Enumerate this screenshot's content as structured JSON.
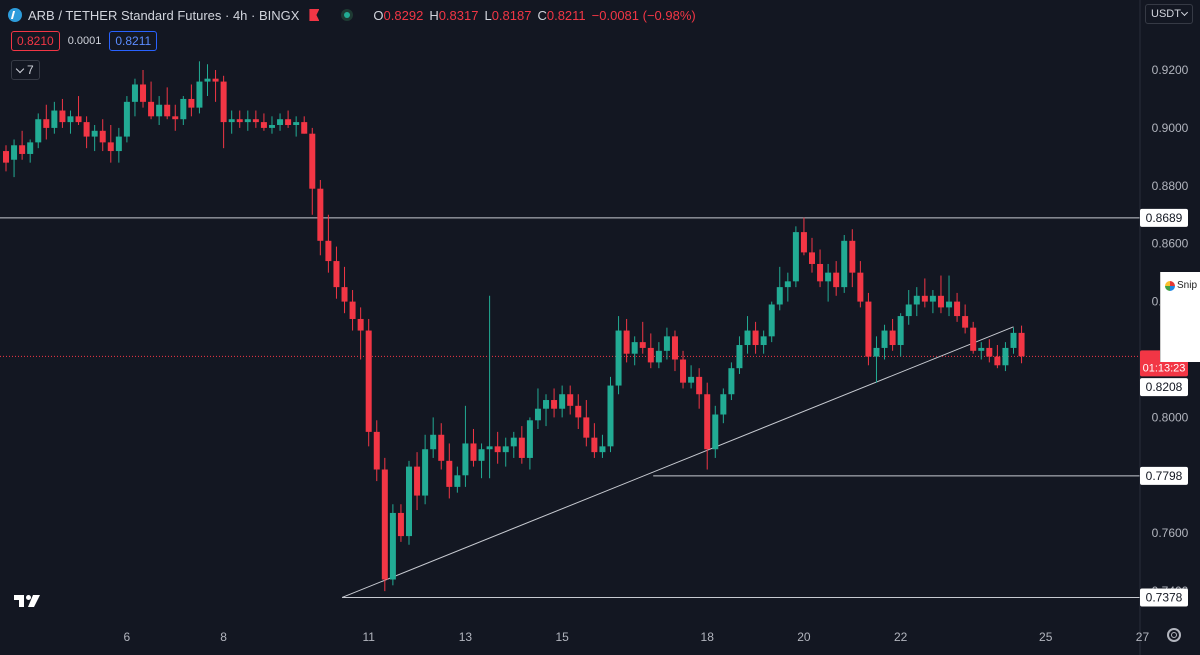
{
  "header": {
    "symbol_title": "ARB / TETHER Standard Futures · 4h · BINGX",
    "ohlc": [
      {
        "key": "O",
        "value": "0.8292"
      },
      {
        "key": "H",
        "value": "0.8317"
      },
      {
        "key": "L",
        "value": "0.8187"
      },
      {
        "key": "C",
        "value": "0.8211"
      }
    ],
    "change": "−0.0081 (−0.98%)",
    "sell_price": "0.8210",
    "spread": "0.0001",
    "buy_price": "0.8211",
    "indicators_count": "7",
    "currency": "USDT"
  },
  "snip_panel": {
    "label": "Snip"
  },
  "colors": {
    "background": "#131722",
    "up": "#22ab94",
    "down": "#f23645",
    "text": "#d1d4dc",
    "line": "#c7cad1"
  },
  "chart_data": {
    "type": "candlestick",
    "y_axis_ticks": [
      "0.9200",
      "0.9000",
      "0.8800",
      "0.8600",
      "0.8400",
      "0.8200",
      "0.8000",
      "0.7800",
      "0.7600",
      "0.7400"
    ],
    "x_axis_ticks": [
      "6",
      "8",
      "11",
      "13",
      "15",
      "18",
      "20",
      "22",
      "25",
      "27"
    ],
    "ylim": [
      0.726,
      0.926
    ],
    "x_ticks_positions": [
      {
        "label": "6",
        "bar": 15
      },
      {
        "label": "8",
        "bar": 27
      },
      {
        "label": "11",
        "bar": 45
      },
      {
        "label": "13",
        "bar": 57
      },
      {
        "label": "15",
        "bar": 69
      },
      {
        "label": "18",
        "bar": 87
      },
      {
        "label": "20",
        "bar": 99
      },
      {
        "label": "22",
        "bar": 111
      },
      {
        "label": "25",
        "bar": 129
      },
      {
        "label": "27",
        "bar": 141
      }
    ],
    "current_price": {
      "value": 0.8211,
      "countdown": "01:13:23"
    },
    "horizontal_levels": [
      {
        "value": 0.8689,
        "label": "0.8689"
      },
      {
        "value": 0.7798,
        "label": "0.7798"
      },
      {
        "value": 0.7378,
        "label": "0.7378"
      }
    ],
    "axis_price_labels": [
      {
        "value": 0.8208,
        "label": "0.8208"
      }
    ],
    "trendline": {
      "from": {
        "bar": 41.7,
        "price": 0.7378
      },
      "to": {
        "bar": 125.0,
        "price": 0.8313
      }
    },
    "candles": [
      [
        0.892,
        0.894,
        0.885,
        0.888
      ],
      [
        0.889,
        0.896,
        0.883,
        0.894
      ],
      [
        0.894,
        0.899,
        0.889,
        0.891
      ],
      [
        0.891,
        0.896,
        0.888,
        0.895
      ],
      [
        0.895,
        0.905,
        0.893,
        0.903
      ],
      [
        0.903,
        0.908,
        0.896,
        0.9
      ],
      [
        0.9,
        0.909,
        0.898,
        0.906
      ],
      [
        0.906,
        0.91,
        0.9,
        0.902
      ],
      [
        0.902,
        0.906,
        0.898,
        0.904
      ],
      [
        0.904,
        0.911,
        0.901,
        0.902
      ],
      [
        0.902,
        0.904,
        0.893,
        0.897
      ],
      [
        0.897,
        0.901,
        0.892,
        0.899
      ],
      [
        0.899,
        0.903,
        0.892,
        0.895
      ],
      [
        0.895,
        0.901,
        0.888,
        0.892
      ],
      [
        0.892,
        0.9,
        0.888,
        0.897
      ],
      [
        0.897,
        0.911,
        0.895,
        0.909
      ],
      [
        0.909,
        0.917,
        0.904,
        0.915
      ],
      [
        0.915,
        0.92,
        0.907,
        0.909
      ],
      [
        0.909,
        0.916,
        0.903,
        0.904
      ],
      [
        0.904,
        0.911,
        0.901,
        0.908
      ],
      [
        0.908,
        0.914,
        0.903,
        0.904
      ],
      [
        0.904,
        0.908,
        0.899,
        0.903
      ],
      [
        0.903,
        0.911,
        0.901,
        0.91
      ],
      [
        0.91,
        0.915,
        0.904,
        0.907
      ],
      [
        0.907,
        0.923,
        0.905,
        0.916
      ],
      [
        0.916,
        0.922,
        0.911,
        0.917
      ],
      [
        0.917,
        0.92,
        0.909,
        0.916
      ],
      [
        0.916,
        0.918,
        0.893,
        0.902
      ],
      [
        0.902,
        0.906,
        0.898,
        0.903
      ],
      [
        0.903,
        0.906,
        0.9,
        0.902
      ],
      [
        0.902,
        0.906,
        0.899,
        0.903
      ],
      [
        0.903,
        0.906,
        0.9,
        0.902
      ],
      [
        0.902,
        0.905,
        0.899,
        0.9
      ],
      [
        0.9,
        0.904,
        0.898,
        0.901
      ],
      [
        0.901,
        0.905,
        0.899,
        0.903
      ],
      [
        0.903,
        0.906,
        0.9,
        0.901
      ],
      [
        0.901,
        0.904,
        0.897,
        0.902
      ],
      [
        0.902,
        0.904,
        0.898,
        0.898
      ],
      [
        0.898,
        0.9,
        0.87,
        0.879
      ],
      [
        0.879,
        0.882,
        0.856,
        0.861
      ],
      [
        0.861,
        0.87,
        0.85,
        0.854
      ],
      [
        0.854,
        0.859,
        0.841,
        0.845
      ],
      [
        0.845,
        0.852,
        0.836,
        0.84
      ],
      [
        0.84,
        0.844,
        0.83,
        0.834
      ],
      [
        0.834,
        0.838,
        0.82,
        0.83
      ],
      [
        0.83,
        0.834,
        0.79,
        0.795
      ],
      [
        0.795,
        0.799,
        0.778,
        0.782
      ],
      [
        0.782,
        0.786,
        0.74,
        0.744
      ],
      [
        0.744,
        0.77,
        0.742,
        0.767
      ],
      [
        0.767,
        0.77,
        0.757,
        0.759
      ],
      [
        0.759,
        0.785,
        0.756,
        0.783
      ],
      [
        0.783,
        0.788,
        0.768,
        0.773
      ],
      [
        0.773,
        0.794,
        0.77,
        0.789
      ],
      [
        0.789,
        0.8,
        0.786,
        0.794
      ],
      [
        0.794,
        0.798,
        0.782,
        0.785
      ],
      [
        0.785,
        0.791,
        0.772,
        0.776
      ],
      [
        0.776,
        0.783,
        0.774,
        0.78
      ],
      [
        0.78,
        0.804,
        0.776,
        0.791
      ],
      [
        0.791,
        0.796,
        0.783,
        0.785
      ],
      [
        0.785,
        0.791,
        0.779,
        0.789
      ],
      [
        0.789,
        0.842,
        0.779,
        0.79
      ],
      [
        0.79,
        0.795,
        0.784,
        0.788
      ],
      [
        0.788,
        0.793,
        0.783,
        0.79
      ],
      [
        0.79,
        0.795,
        0.786,
        0.793
      ],
      [
        0.793,
        0.797,
        0.784,
        0.786
      ],
      [
        0.786,
        0.8,
        0.782,
        0.799
      ],
      [
        0.799,
        0.81,
        0.796,
        0.803
      ],
      [
        0.803,
        0.808,
        0.797,
        0.806
      ],
      [
        0.806,
        0.81,
        0.8,
        0.803
      ],
      [
        0.803,
        0.811,
        0.8,
        0.808
      ],
      [
        0.808,
        0.811,
        0.801,
        0.804
      ],
      [
        0.804,
        0.808,
        0.796,
        0.8
      ],
      [
        0.8,
        0.806,
        0.79,
        0.793
      ],
      [
        0.793,
        0.798,
        0.786,
        0.788
      ],
      [
        0.788,
        0.794,
        0.786,
        0.79
      ],
      [
        0.79,
        0.814,
        0.788,
        0.811
      ],
      [
        0.811,
        0.835,
        0.808,
        0.83
      ],
      [
        0.83,
        0.834,
        0.819,
        0.822
      ],
      [
        0.822,
        0.828,
        0.818,
        0.826
      ],
      [
        0.826,
        0.833,
        0.822,
        0.824
      ],
      [
        0.824,
        0.829,
        0.817,
        0.819
      ],
      [
        0.819,
        0.826,
        0.817,
        0.823
      ],
      [
        0.823,
        0.831,
        0.82,
        0.828
      ],
      [
        0.828,
        0.83,
        0.816,
        0.82
      ],
      [
        0.82,
        0.823,
        0.81,
        0.812
      ],
      [
        0.812,
        0.818,
        0.81,
        0.814
      ],
      [
        0.814,
        0.817,
        0.803,
        0.808
      ],
      [
        0.808,
        0.812,
        0.782,
        0.789
      ],
      [
        0.789,
        0.804,
        0.786,
        0.801
      ],
      [
        0.801,
        0.81,
        0.798,
        0.808
      ],
      [
        0.808,
        0.819,
        0.806,
        0.817
      ],
      [
        0.817,
        0.828,
        0.815,
        0.825
      ],
      [
        0.825,
        0.835,
        0.822,
        0.83
      ],
      [
        0.83,
        0.833,
        0.822,
        0.825
      ],
      [
        0.825,
        0.83,
        0.822,
        0.828
      ],
      [
        0.828,
        0.84,
        0.826,
        0.839
      ],
      [
        0.839,
        0.852,
        0.837,
        0.845
      ],
      [
        0.845,
        0.85,
        0.84,
        0.847
      ],
      [
        0.847,
        0.866,
        0.845,
        0.864
      ],
      [
        0.864,
        0.869,
        0.856,
        0.857
      ],
      [
        0.857,
        0.862,
        0.85,
        0.853
      ],
      [
        0.853,
        0.858,
        0.845,
        0.847
      ],
      [
        0.847,
        0.853,
        0.84,
        0.85
      ],
      [
        0.85,
        0.854,
        0.842,
        0.845
      ],
      [
        0.845,
        0.863,
        0.843,
        0.861
      ],
      [
        0.861,
        0.865,
        0.845,
        0.85
      ],
      [
        0.85,
        0.854,
        0.838,
        0.84
      ],
      [
        0.84,
        0.843,
        0.818,
        0.821
      ],
      [
        0.821,
        0.828,
        0.812,
        0.824
      ],
      [
        0.824,
        0.832,
        0.82,
        0.83
      ],
      [
        0.83,
        0.834,
        0.823,
        0.825
      ],
      [
        0.825,
        0.836,
        0.821,
        0.835
      ],
      [
        0.835,
        0.844,
        0.832,
        0.839
      ],
      [
        0.839,
        0.845,
        0.835,
        0.842
      ],
      [
        0.842,
        0.848,
        0.838,
        0.84
      ],
      [
        0.84,
        0.844,
        0.836,
        0.842
      ],
      [
        0.842,
        0.849,
        0.836,
        0.838
      ],
      [
        0.838,
        0.849,
        0.835,
        0.84
      ],
      [
        0.84,
        0.843,
        0.833,
        0.835
      ],
      [
        0.835,
        0.839,
        0.829,
        0.831
      ],
      [
        0.831,
        0.833,
        0.822,
        0.823
      ],
      [
        0.823,
        0.826,
        0.82,
        0.824
      ],
      [
        0.824,
        0.827,
        0.819,
        0.821
      ],
      [
        0.821,
        0.825,
        0.817,
        0.818
      ],
      [
        0.818,
        0.826,
        0.816,
        0.824
      ],
      [
        0.824,
        0.831,
        0.822,
        0.8292
      ],
      [
        0.8292,
        0.8317,
        0.8187,
        0.8211
      ]
    ]
  }
}
